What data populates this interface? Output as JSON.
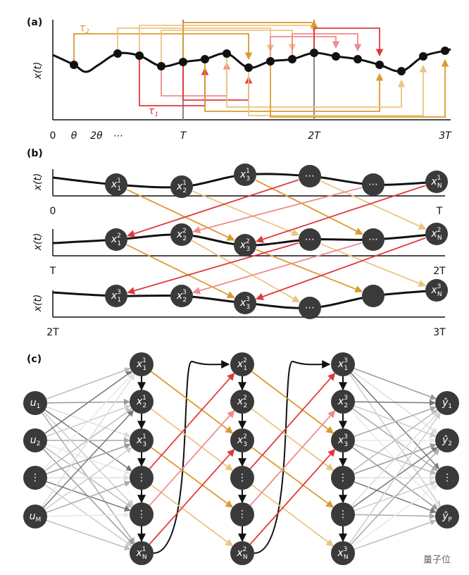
{
  "panel_a": {
    "label": "(a)",
    "y_label": "x(t)",
    "tau_2": {
      "sym": "τ",
      "sub": "2"
    },
    "tau_1": {
      "sym": "τ",
      "sub": "1"
    },
    "x_ticks": [
      "0",
      "θ",
      "2θ",
      "⋯",
      "T",
      "2T",
      "3T"
    ]
  },
  "panel_b": {
    "label": "(b)",
    "rows": [
      {
        "y_label": "x(t)",
        "start": "0",
        "end": "T",
        "nodes": [
          {
            "sym": "x",
            "sup": "1",
            "sub": "1"
          },
          {
            "sym": "x",
            "sup": "1",
            "sub": "2"
          },
          {
            "sym": "x",
            "sup": "1",
            "sub": "3"
          },
          {
            "sym": "⋯"
          },
          {
            "sym": "⋯"
          },
          {
            "sym": "x",
            "sup": "1",
            "sub": "N"
          }
        ]
      },
      {
        "y_label": "x(t)",
        "start": "T",
        "end": "2T",
        "nodes": [
          {
            "sym": "x",
            "sup": "2",
            "sub": "1"
          },
          {
            "sym": "x",
            "sup": "2",
            "sub": "2"
          },
          {
            "sym": "x",
            "sup": "2",
            "sub": "3"
          },
          {
            "sym": "⋯"
          },
          {
            "sym": "⋯"
          },
          {
            "sym": "x",
            "sup": "2",
            "sub": "N"
          }
        ]
      },
      {
        "y_label": "x(t)",
        "start": "2T",
        "end": "3T",
        "nodes": [
          {
            "sym": "x",
            "sup": "3",
            "sub": "1"
          },
          {
            "sym": "x",
            "sup": "3",
            "sub": "2"
          },
          {
            "sym": "x",
            "sup": "3",
            "sub": "3"
          },
          {
            "sym": "⋯"
          },
          null,
          {
            "sym": "x",
            "sup": "3",
            "sub": "N"
          }
        ]
      }
    ]
  },
  "panel_c": {
    "label": "(c)",
    "inputs": [
      {
        "sym": "u",
        "sub": "1"
      },
      {
        "sym": "u",
        "sub": "2"
      },
      {
        "sym": "⋮"
      },
      {
        "sym": "u",
        "sub": "M"
      }
    ],
    "reservoirs": [
      [
        {
          "sym": "x",
          "sup": "1",
          "sub": "1"
        },
        {
          "sym": "x",
          "sup": "1",
          "sub": "2"
        },
        {
          "sym": "x",
          "sup": "1",
          "sub": "3"
        },
        {
          "sym": "⋮"
        },
        {
          "sym": "⋮"
        },
        {
          "sym": "x",
          "sup": "1",
          "sub": "N"
        }
      ],
      [
        {
          "sym": "x",
          "sup": "2",
          "sub": "1"
        },
        {
          "sym": "x",
          "sup": "2",
          "sub": "2"
        },
        {
          "sym": "x",
          "sup": "2",
          "sub": "3"
        },
        {
          "sym": "⋮"
        },
        {
          "sym": "⋮"
        },
        {
          "sym": "x",
          "sup": "2",
          "sub": "N"
        }
      ],
      [
        {
          "sym": "x",
          "sup": "3",
          "sub": "1"
        },
        {
          "sym": "x",
          "sup": "3",
          "sub": "2"
        },
        {
          "sym": "x",
          "sup": "3",
          "sub": "3"
        },
        {
          "sym": "⋮"
        },
        {
          "sym": "⋮"
        },
        {
          "sym": "x",
          "sup": "3",
          "sub": "N"
        }
      ]
    ],
    "outputs": [
      {
        "sym": "ŷ",
        "sub": "1"
      },
      {
        "sym": "ŷ",
        "sub": "2"
      },
      {
        "sym": "⋮"
      },
      {
        "sym": "ŷ",
        "sub": "P"
      }
    ]
  },
  "watermark": "量子位"
}
